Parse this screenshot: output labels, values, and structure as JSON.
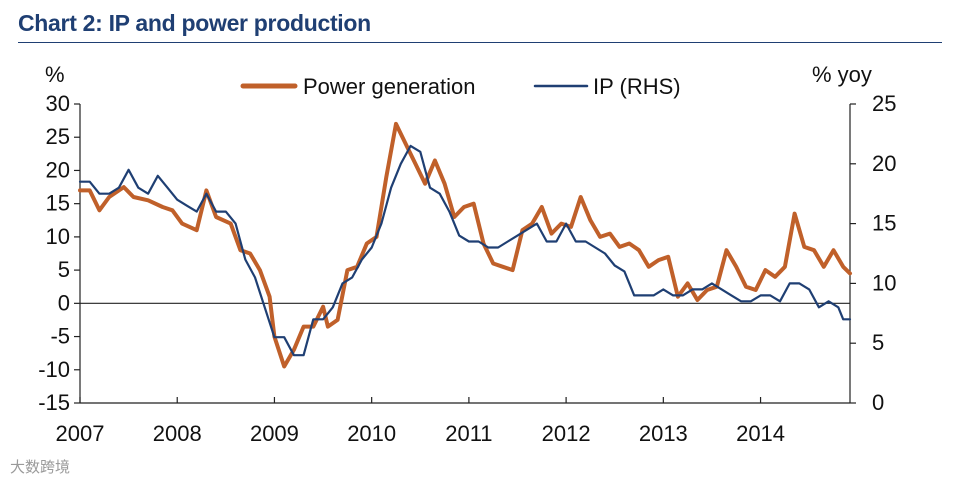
{
  "title": "Chart 2: IP and power production",
  "watermark": "大数跨境",
  "chart_data": {
    "type": "line",
    "title": "Chart 2: IP and power production",
    "left_unit": "%",
    "right_unit": "% yoy",
    "x_tick_labels": [
      "2007",
      "2008",
      "2009",
      "2010",
      "2011",
      "2012",
      "2013",
      "2014"
    ],
    "x_range": [
      2007.0,
      2014.92
    ],
    "y_left_range": [
      -15,
      30
    ],
    "y_left_ticks": [
      -15,
      -10,
      -5,
      0,
      5,
      10,
      15,
      20,
      25,
      30
    ],
    "y_right_range": [
      0,
      25
    ],
    "y_right_ticks": [
      0,
      5,
      10,
      15,
      20,
      25
    ],
    "legend_position": "top-center",
    "grid": false,
    "series": [
      {
        "name": "Power generation",
        "axis": "left",
        "color": "#c0602a",
        "points": [
          [
            2007.0,
            17
          ],
          [
            2007.1,
            17
          ],
          [
            2007.2,
            14
          ],
          [
            2007.3,
            16
          ],
          [
            2007.45,
            17.5
          ],
          [
            2007.55,
            16
          ],
          [
            2007.7,
            15.5
          ],
          [
            2007.85,
            14.5
          ],
          [
            2007.95,
            14
          ],
          [
            2008.05,
            12
          ],
          [
            2008.2,
            11
          ],
          [
            2008.3,
            17
          ],
          [
            2008.4,
            13
          ],
          [
            2008.55,
            12
          ],
          [
            2008.65,
            8
          ],
          [
            2008.75,
            7.5
          ],
          [
            2008.85,
            5
          ],
          [
            2008.95,
            1
          ],
          [
            2009.0,
            -5
          ],
          [
            2009.1,
            -9.5
          ],
          [
            2009.2,
            -7
          ],
          [
            2009.3,
            -3.5
          ],
          [
            2009.4,
            -3.5
          ],
          [
            2009.5,
            -0.5
          ],
          [
            2009.55,
            -3.5
          ],
          [
            2009.65,
            -2.5
          ],
          [
            2009.75,
            5
          ],
          [
            2009.85,
            5.5
          ],
          [
            2009.95,
            9
          ],
          [
            2010.05,
            10
          ],
          [
            2010.15,
            19
          ],
          [
            2010.25,
            27
          ],
          [
            2010.35,
            24
          ],
          [
            2010.45,
            21
          ],
          [
            2010.55,
            18
          ],
          [
            2010.65,
            21.5
          ],
          [
            2010.75,
            18
          ],
          [
            2010.85,
            13
          ],
          [
            2010.95,
            14.5
          ],
          [
            2011.05,
            15
          ],
          [
            2011.15,
            9
          ],
          [
            2011.25,
            6
          ],
          [
            2011.35,
            5.5
          ],
          [
            2011.45,
            5
          ],
          [
            2011.55,
            11
          ],
          [
            2011.65,
            12
          ],
          [
            2011.75,
            14.5
          ],
          [
            2011.85,
            10.5
          ],
          [
            2011.95,
            12
          ],
          [
            2012.05,
            11.5
          ],
          [
            2012.15,
            16
          ],
          [
            2012.25,
            12.5
          ],
          [
            2012.35,
            10
          ],
          [
            2012.45,
            10.5
          ],
          [
            2012.55,
            8.5
          ],
          [
            2012.65,
            9
          ],
          [
            2012.75,
            8
          ],
          [
            2012.85,
            5.5
          ],
          [
            2012.95,
            6.5
          ],
          [
            2013.05,
            7
          ],
          [
            2013.15,
            1
          ],
          [
            2013.25,
            3
          ],
          [
            2013.35,
            0.5
          ],
          [
            2013.45,
            2
          ],
          [
            2013.55,
            2.5
          ],
          [
            2013.65,
            8
          ],
          [
            2013.75,
            5.5
          ],
          [
            2013.85,
            2.5
          ],
          [
            2013.95,
            2
          ],
          [
            2014.05,
            5
          ],
          [
            2014.15,
            4
          ],
          [
            2014.25,
            5.5
          ],
          [
            2014.35,
            13.5
          ],
          [
            2014.45,
            8.5
          ],
          [
            2014.55,
            8
          ],
          [
            2014.65,
            5.5
          ],
          [
            2014.75,
            8
          ],
          [
            2014.85,
            5.5
          ],
          [
            2014.92,
            4.5
          ]
        ]
      },
      {
        "name": "IP (RHS)",
        "axis": "right",
        "color": "#1f3f73",
        "points": [
          [
            2007.0,
            18.5
          ],
          [
            2007.1,
            18.5
          ],
          [
            2007.2,
            17.5
          ],
          [
            2007.3,
            17.5
          ],
          [
            2007.4,
            18
          ],
          [
            2007.5,
            19.5
          ],
          [
            2007.6,
            18
          ],
          [
            2007.7,
            17.5
          ],
          [
            2007.8,
            19
          ],
          [
            2007.9,
            18
          ],
          [
            2008.0,
            17
          ],
          [
            2008.1,
            16.5
          ],
          [
            2008.2,
            16
          ],
          [
            2008.3,
            17.5
          ],
          [
            2008.4,
            16
          ],
          [
            2008.5,
            16
          ],
          [
            2008.6,
            15
          ],
          [
            2008.7,
            12
          ],
          [
            2008.8,
            10.5
          ],
          [
            2008.9,
            8
          ],
          [
            2009.0,
            5.5
          ],
          [
            2009.1,
            5.5
          ],
          [
            2009.2,
            4
          ],
          [
            2009.3,
            4
          ],
          [
            2009.4,
            7
          ],
          [
            2009.5,
            7
          ],
          [
            2009.6,
            8
          ],
          [
            2009.7,
            10
          ],
          [
            2009.8,
            10.5
          ],
          [
            2009.9,
            12
          ],
          [
            2010.0,
            13
          ],
          [
            2010.1,
            15
          ],
          [
            2010.2,
            18
          ],
          [
            2010.3,
            20
          ],
          [
            2010.4,
            21.5
          ],
          [
            2010.5,
            21
          ],
          [
            2010.6,
            18
          ],
          [
            2010.7,
            17.5
          ],
          [
            2010.8,
            16
          ],
          [
            2010.9,
            14
          ],
          [
            2011.0,
            13.5
          ],
          [
            2011.1,
            13.5
          ],
          [
            2011.2,
            13
          ],
          [
            2011.3,
            13
          ],
          [
            2011.4,
            13.5
          ],
          [
            2011.5,
            14
          ],
          [
            2011.6,
            14.5
          ],
          [
            2011.7,
            15
          ],
          [
            2011.8,
            13.5
          ],
          [
            2011.9,
            13.5
          ],
          [
            2012.0,
            15
          ],
          [
            2012.1,
            13.5
          ],
          [
            2012.2,
            13.5
          ],
          [
            2012.3,
            13
          ],
          [
            2012.4,
            12.5
          ],
          [
            2012.5,
            11.5
          ],
          [
            2012.6,
            11
          ],
          [
            2012.7,
            9
          ],
          [
            2012.8,
            9
          ],
          [
            2012.9,
            9
          ],
          [
            2013.0,
            9.5
          ],
          [
            2013.1,
            9
          ],
          [
            2013.2,
            9
          ],
          [
            2013.3,
            9.5
          ],
          [
            2013.4,
            9.5
          ],
          [
            2013.5,
            10
          ],
          [
            2013.6,
            9.5
          ],
          [
            2013.7,
            9
          ],
          [
            2013.8,
            8.5
          ],
          [
            2013.9,
            8.5
          ],
          [
            2014.0,
            9
          ],
          [
            2014.1,
            9
          ],
          [
            2014.2,
            8.5
          ],
          [
            2014.3,
            10
          ],
          [
            2014.4,
            10
          ],
          [
            2014.5,
            9.5
          ],
          [
            2014.6,
            8
          ],
          [
            2014.7,
            8.5
          ],
          [
            2014.8,
            8
          ],
          [
            2014.85,
            7
          ],
          [
            2014.92,
            7
          ]
        ]
      }
    ]
  }
}
